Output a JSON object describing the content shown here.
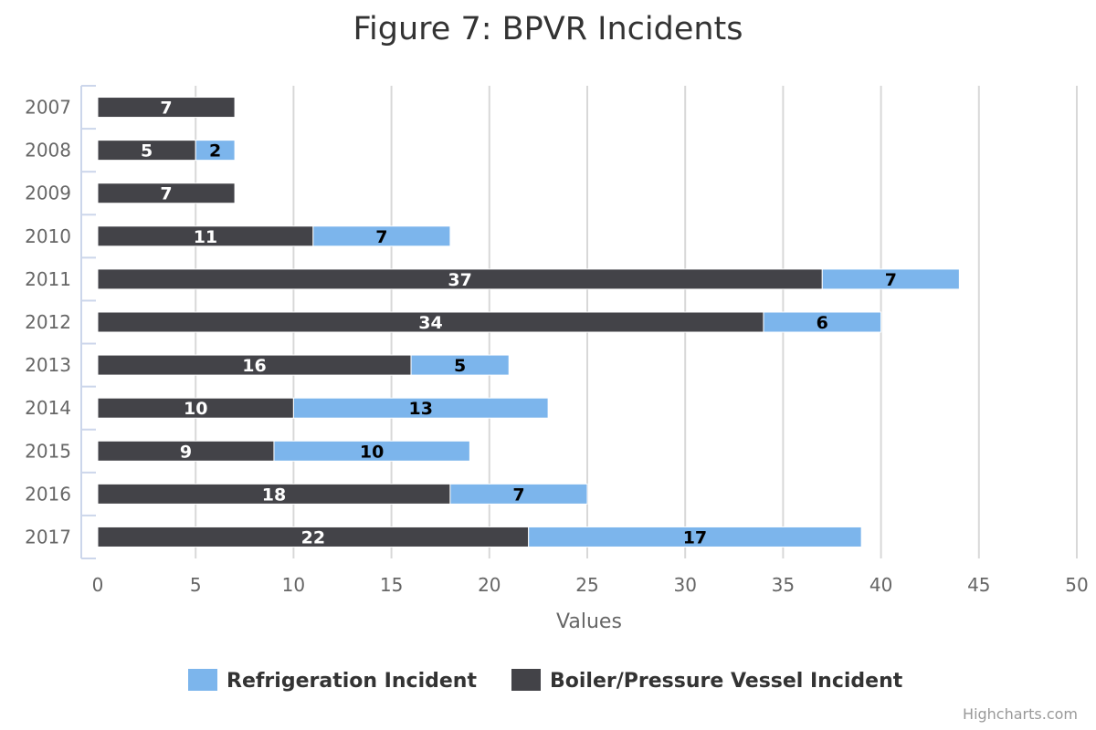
{
  "chart_data": {
    "type": "bar",
    "stacked": true,
    "orientation": "horizontal",
    "title": "Figure 7: BPVR Incidents",
    "xlabel": "Values",
    "categories": [
      "2007",
      "2008",
      "2009",
      "2010",
      "2011",
      "2012",
      "2013",
      "2014",
      "2015",
      "2016",
      "2017"
    ],
    "xlim": [
      0,
      50
    ],
    "ticks": [
      0,
      5,
      10,
      15,
      20,
      25,
      30,
      35,
      40,
      45,
      50
    ],
    "grid": true,
    "legend_position": "bottom-center",
    "series": [
      {
        "name": "Refrigeration Incident",
        "color": "#7cb5ec",
        "label_color": "#000000",
        "values": [
          0,
          2,
          0,
          7,
          7,
          6,
          5,
          13,
          10,
          7,
          17
        ]
      },
      {
        "name": "Boiler/Pressure Vessel Incident",
        "color": "#434348",
        "label_color": "#ffffff",
        "values": [
          7,
          5,
          7,
          11,
          37,
          34,
          16,
          10,
          9,
          18,
          22
        ]
      }
    ]
  },
  "credit": "Highcharts.com"
}
